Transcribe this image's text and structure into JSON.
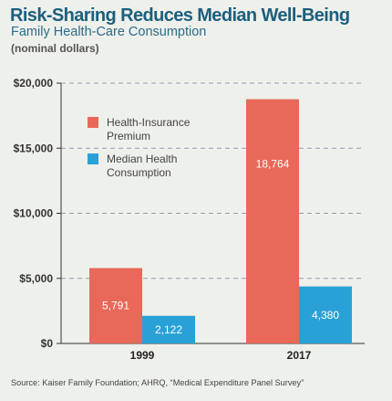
{
  "header": {
    "title": "Risk-Sharing Reduces Median Well-Being",
    "subtitle": "Family Health-Care Consumption",
    "unit_note": "(nominal dollars)"
  },
  "footer": {
    "source": "Source: Kaiser Family Foundation; AHRQ, “Medical Expenditure Panel Survey”"
  },
  "colors": {
    "premium": "#e8695a",
    "consumption": "#2aa1d6",
    "grid": "#8fa0b0",
    "axis": "#333333"
  },
  "chart_data": {
    "type": "bar",
    "title": "Risk-Sharing Reduces Median Well-Being",
    "subtitle": "Family Health-Care Consumption",
    "ylabel": "(nominal dollars)",
    "xlabel": "",
    "categories": [
      "1999",
      "2017"
    ],
    "series": [
      {
        "name": "Health-Insurance Premium",
        "legend_lines": [
          "Health-Insurance",
          "Premium"
        ],
        "color": "#e8695a",
        "values": [
          5791,
          18764
        ],
        "labels": [
          "5,791",
          "18,764"
        ]
      },
      {
        "name": "Median Health Consumption",
        "legend_lines": [
          "Median Health",
          "Consumption"
        ],
        "color": "#2aa1d6",
        "values": [
          2122,
          4380
        ],
        "labels": [
          "2,122",
          "4,380"
        ]
      }
    ],
    "ylim": [
      0,
      20000
    ],
    "yticks": [
      0,
      5000,
      10000,
      15000,
      20000
    ],
    "ytick_labels": [
      "$0",
      "$5,000",
      "$10,000",
      "$15,000",
      "$20,000"
    ],
    "grid": true,
    "legend_position": "top-left"
  }
}
